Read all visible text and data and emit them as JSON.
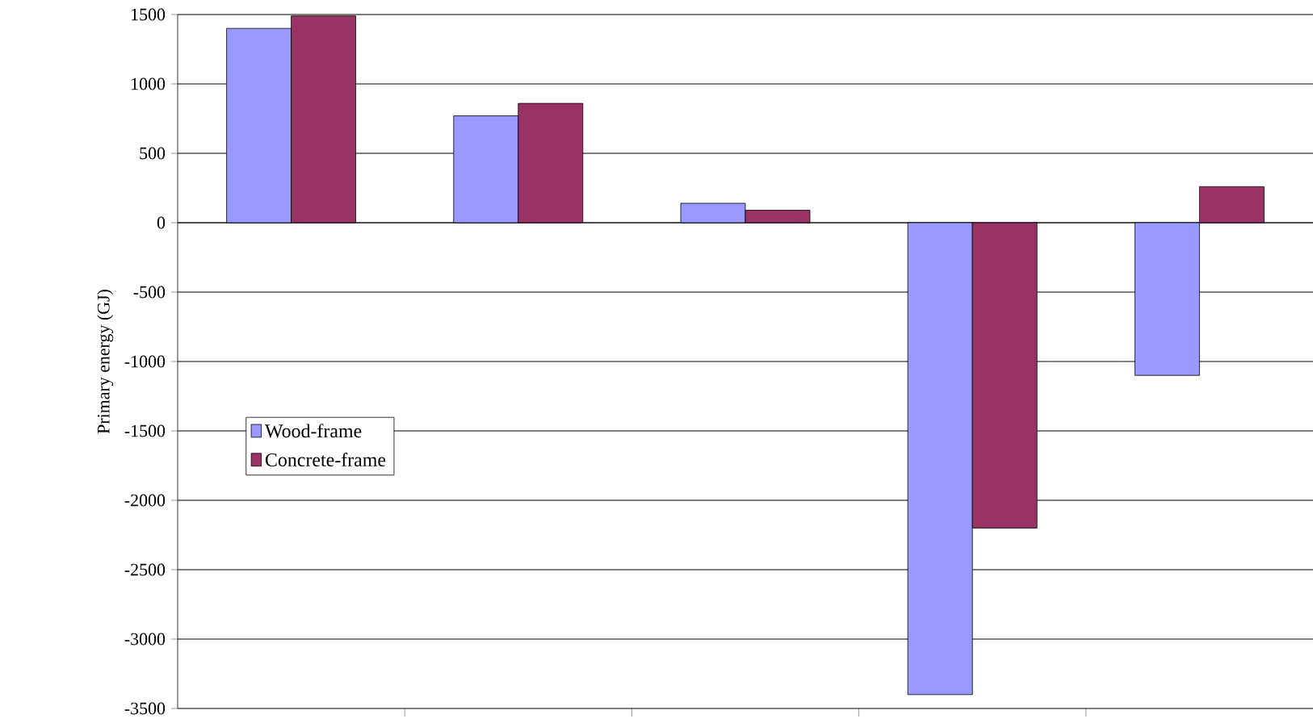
{
  "chart_data": {
    "type": "bar",
    "ylabel": "Primary energy (GJ)",
    "categories": [
      null,
      null,
      null,
      null,
      null
    ],
    "series": [
      {
        "name": "Wood-frame",
        "color": "#9999ff",
        "values": [
          1400,
          770,
          140,
          -3400,
          -1100
        ]
      },
      {
        "name": "Concrete-frame",
        "color": "#993366",
        "values": [
          1490,
          860,
          90,
          -2200,
          260
        ]
      }
    ],
    "ylim": [
      -3500,
      1500
    ],
    "yticks": [
      -3500,
      -3000,
      -2500,
      -2000,
      -1500,
      -1000,
      -500,
      0,
      500,
      1000,
      1500
    ],
    "grid": "y",
    "legend": "left"
  }
}
